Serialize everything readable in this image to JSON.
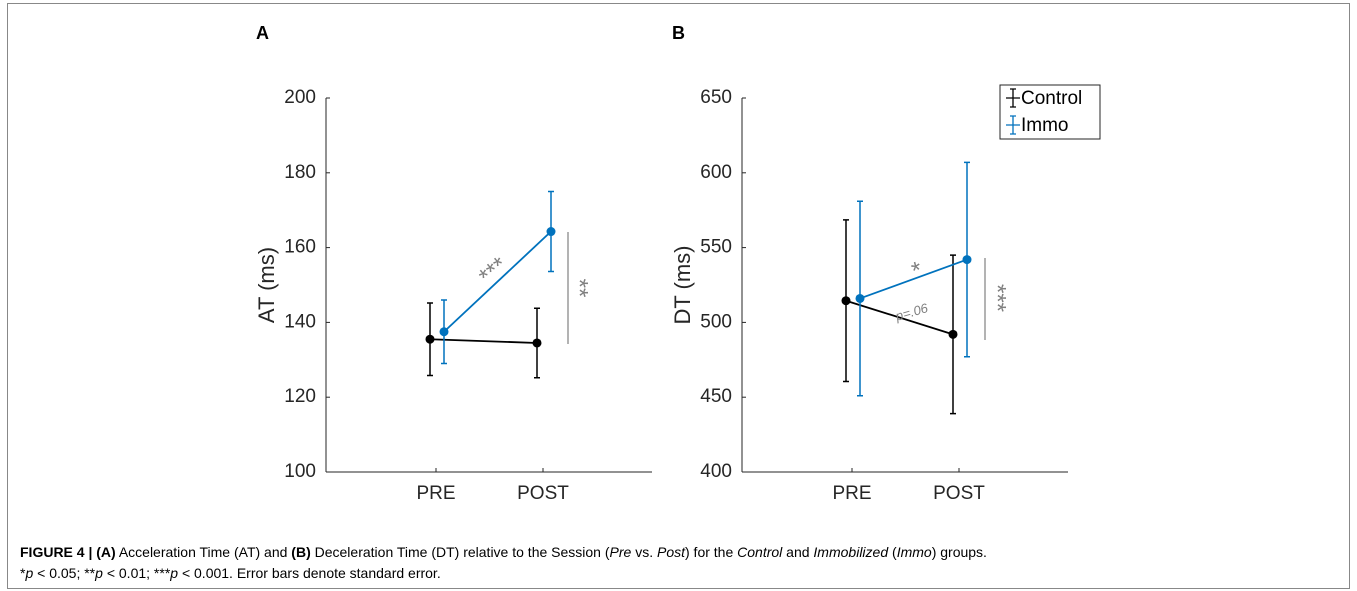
{
  "chart_data": [
    {
      "type": "errorbar-line",
      "panel": "A",
      "ylabel": "AT (ms)",
      "categories": [
        "PRE",
        "POST"
      ],
      "ylim": [
        100,
        200
      ],
      "yticks": [
        100,
        120,
        140,
        160,
        180,
        200
      ],
      "series": [
        {
          "name": "Control",
          "color": "#000000",
          "values": [
            135.5,
            134.5
          ],
          "errors": [
            9.7,
            9.3
          ]
        },
        {
          "name": "Immo",
          "color": "#0072BD",
          "values": [
            137.5,
            164.3
          ],
          "errors": [
            8.5,
            10.7
          ]
        }
      ],
      "annotations": [
        "***",
        "**"
      ]
    },
    {
      "type": "errorbar-line",
      "panel": "B",
      "ylabel": "DT (ms)",
      "categories": [
        "PRE",
        "POST"
      ],
      "ylim": [
        400,
        650
      ],
      "yticks": [
        400,
        450,
        500,
        550,
        600,
        650
      ],
      "series": [
        {
          "name": "Control",
          "color": "#000000",
          "values": [
            514.5,
            492
          ],
          "errors": [
            54,
            53
          ]
        },
        {
          "name": "Immo",
          "color": "#0072BD",
          "values": [
            516,
            542
          ],
          "errors": [
            65,
            65
          ]
        }
      ],
      "annotations": [
        "*",
        "p=.06",
        "***"
      ],
      "legend": "upper right"
    }
  ],
  "caption": {
    "lines": [
      [
        {
          "text": "FIGURE 4 | (A)",
          "style": "b"
        },
        {
          "text": " Acceleration Time (AT) and "
        },
        {
          "text": "(B)",
          "style": "b"
        },
        {
          "text": " Deceleration Time (DT) relative to the Session ("
        },
        {
          "text": "Pre",
          "style": "i"
        },
        {
          "text": " vs. "
        },
        {
          "text": "Post",
          "style": "i"
        },
        {
          "text": ") for the "
        },
        {
          "text": "Control",
          "style": "i"
        },
        {
          "text": " and "
        },
        {
          "text": "Immobilized",
          "style": "i"
        },
        {
          "text": " ("
        },
        {
          "text": "Immo",
          "style": "i"
        },
        {
          "text": ") groups."
        }
      ],
      [
        {
          "text": "*"
        },
        {
          "text": "p",
          "style": "i"
        },
        {
          "text": " < 0.05; **"
        },
        {
          "text": "p",
          "style": "i"
        },
        {
          "text": " < 0.01; ***"
        },
        {
          "text": "p",
          "style": "i"
        },
        {
          "text": " < 0.001. Error bars denote standard error."
        }
      ]
    ]
  }
}
